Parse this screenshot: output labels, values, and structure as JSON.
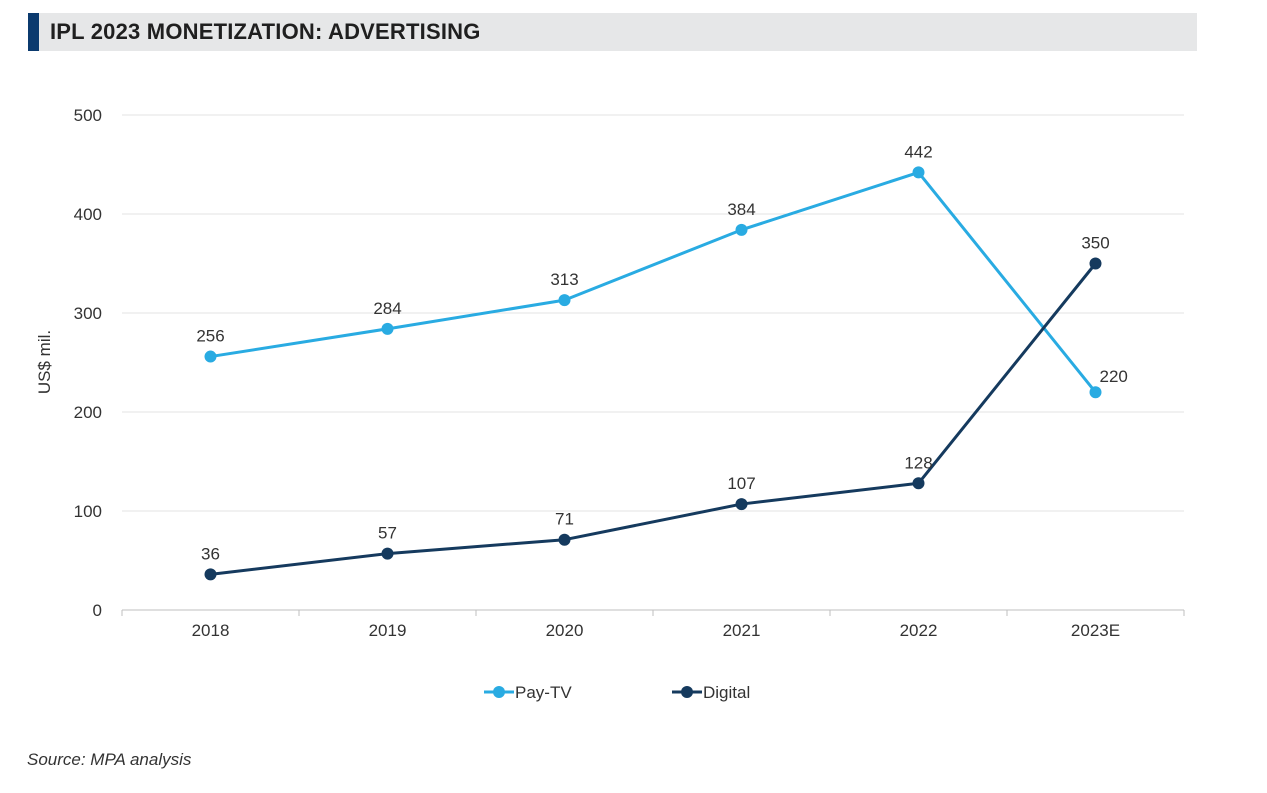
{
  "header": {
    "title": "IPL 2023 MONETIZATION: ADVERTISING"
  },
  "footer": {
    "source": "Source: MPA analysis"
  },
  "colors": {
    "accent": "#0b3a6e",
    "pay_tv": "#29abe2",
    "digital": "#153a5e"
  },
  "chart_data": {
    "type": "line",
    "categories": [
      "2018",
      "2019",
      "2020",
      "2021",
      "2022",
      "2023E"
    ],
    "series": [
      {
        "name": "Pay-TV",
        "values": [
          256,
          284,
          313,
          384,
          442,
          220
        ],
        "color": "#29abe2"
      },
      {
        "name": "Digital",
        "values": [
          36,
          57,
          71,
          107,
          128,
          350
        ],
        "color": "#153a5e"
      }
    ],
    "ylabel": "US$ mil.",
    "xlabel": "",
    "ylim": [
      0,
      500
    ],
    "yticks": [
      0,
      100,
      200,
      300,
      400,
      500
    ],
    "grid": true,
    "legend": "bottom-center",
    "data_labels": true
  }
}
